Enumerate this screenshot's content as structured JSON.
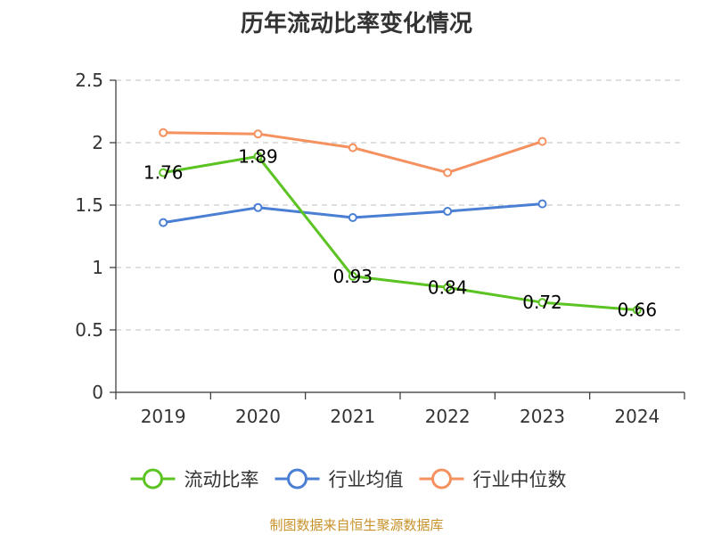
{
  "chart_data": {
    "type": "line",
    "title": "历年流动比率变化情况",
    "categories": [
      "2019",
      "2020",
      "2021",
      "2022",
      "2023",
      "2024"
    ],
    "ylim": [
      0,
      2.5
    ],
    "yticks": [
      "0",
      "0.5",
      "1",
      "1.5",
      "2",
      "2.5"
    ],
    "ytick_values": [
      0,
      0.5,
      1,
      1.5,
      2,
      2.5
    ],
    "grid": true,
    "legend_position": "bottom-center",
    "series": [
      {
        "name": "流动比率",
        "color": "#5bc322",
        "values": [
          1.76,
          1.89,
          0.93,
          0.84,
          0.72,
          0.66
        ],
        "labels": [
          "1.76",
          "1.89",
          "0.93",
          "0.84",
          "0.72",
          "0.66"
        ],
        "show_labels": true
      },
      {
        "name": "行业均值",
        "color": "#4a7fd4",
        "values": [
          1.36,
          1.48,
          1.4,
          1.45,
          1.51,
          null
        ],
        "show_labels": false
      },
      {
        "name": "行业中位数",
        "color": "#f5905f",
        "values": [
          2.08,
          2.07,
          1.96,
          1.76,
          2.01,
          null
        ],
        "show_labels": false
      }
    ],
    "source": "制图数据来自恒生聚源数据库",
    "source_color": "#c8922a"
  }
}
